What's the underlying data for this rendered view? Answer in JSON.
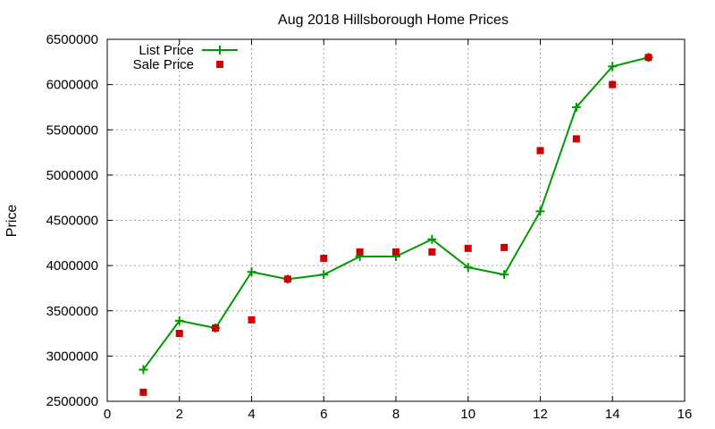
{
  "chart_data": {
    "type": "line",
    "title": "Aug 2018 Hillsborough Home Prices",
    "xlabel": "",
    "ylabel": "Price",
    "xlim": [
      0,
      16
    ],
    "ylim": [
      2500000,
      6500000
    ],
    "x_ticks": [
      0,
      2,
      4,
      6,
      8,
      10,
      12,
      14,
      16
    ],
    "y_ticks": [
      2500000,
      3000000,
      3500000,
      4000000,
      4500000,
      5000000,
      5500000,
      6000000,
      6500000
    ],
    "grid": true,
    "legend_position": "top-left",
    "series": [
      {
        "name": "List Price",
        "style": "line+cross",
        "color": "#009900",
        "x": [
          1,
          2,
          3,
          4,
          5,
          6,
          7,
          8,
          9,
          10,
          11,
          12,
          13,
          14,
          15
        ],
        "values": [
          2850000,
          3390000,
          3310000,
          3930000,
          3850000,
          3900000,
          4100000,
          4100000,
          4290000,
          3980000,
          3900000,
          4600000,
          5750000,
          6200000,
          6300000
        ]
      },
      {
        "name": "Sale Price",
        "style": "square",
        "color": "#cc0000",
        "x": [
          1,
          2,
          3,
          4,
          5,
          6,
          7,
          8,
          9,
          10,
          11,
          12,
          13,
          14,
          15
        ],
        "values": [
          2600000,
          3250000,
          3310000,
          3400000,
          3850000,
          4080000,
          4150000,
          4150000,
          4150000,
          4190000,
          4200000,
          5270000,
          5400000,
          6000000,
          6300000
        ]
      }
    ]
  }
}
